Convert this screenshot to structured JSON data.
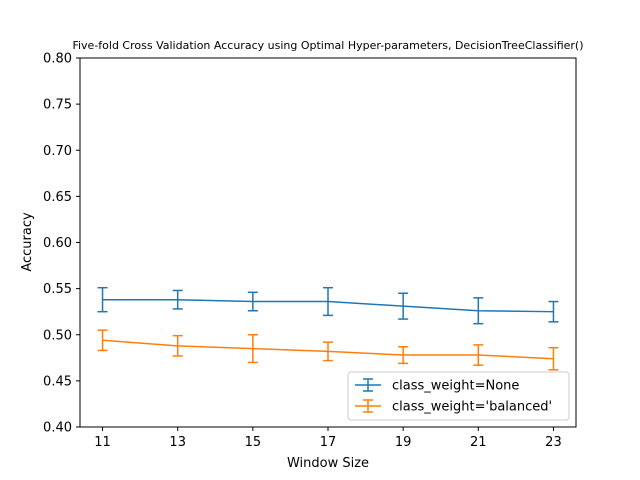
{
  "chart_data": {
    "type": "line",
    "title": "Five-fold Cross Validation Accuracy using Optimal Hyper-parameters, DecisionTreeClassifier()",
    "xlabel": "Window Size",
    "ylabel": "Accuracy",
    "x": [
      11,
      13,
      15,
      17,
      19,
      21,
      23
    ],
    "x_ticks": [
      "11",
      "13",
      "15",
      "17",
      "19",
      "21",
      "23"
    ],
    "ylim": [
      0.4,
      0.8
    ],
    "y_ticks": [
      "0.40",
      "0.45",
      "0.50",
      "0.55",
      "0.60",
      "0.65",
      "0.70",
      "0.75",
      "0.80"
    ],
    "legend_position": "bottom-right",
    "series": [
      {
        "name": "class_weight=None",
        "color": "#1f77b4",
        "values": [
          0.538,
          0.538,
          0.536,
          0.536,
          0.531,
          0.526,
          0.525
        ],
        "errors": [
          0.013,
          0.01,
          0.01,
          0.015,
          0.014,
          0.014,
          0.011
        ]
      },
      {
        "name": "class_weight='balanced'",
        "color": "#ff7f0e",
        "values": [
          0.494,
          0.488,
          0.485,
          0.482,
          0.478,
          0.478,
          0.474
        ],
        "errors": [
          0.011,
          0.011,
          0.015,
          0.01,
          0.009,
          0.011,
          0.012
        ]
      }
    ]
  }
}
